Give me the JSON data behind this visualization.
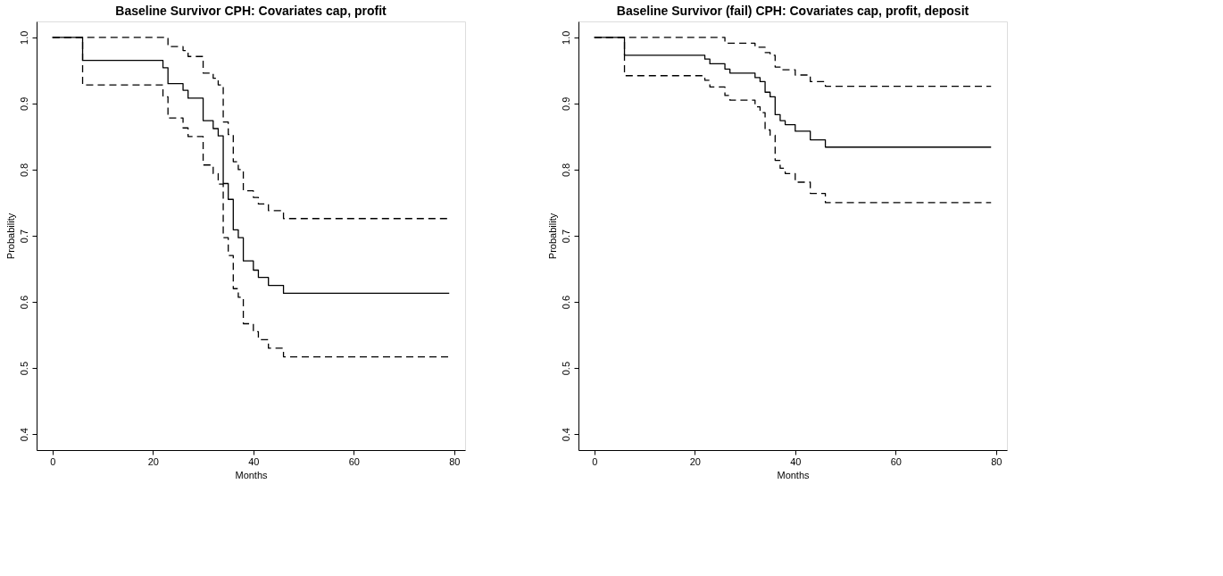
{
  "chart_data": [
    {
      "type": "step",
      "title": "Baseline Survivor CPH: Covariates cap, profit",
      "xlabel": "Months",
      "ylabel": "Probability",
      "xlim": [
        -3.16,
        82.16
      ],
      "ylim": [
        0.376,
        1.024
      ],
      "xticks": [
        0,
        20,
        40,
        60,
        80
      ],
      "yticks": [
        0.4,
        0.5,
        0.6,
        0.7,
        0.8,
        0.9,
        {
          "value": 1,
          "label": "1.0"
        }
      ],
      "grid": false,
      "legend": false,
      "series": [
        {
          "color": "#000000",
          "line_style": "dashed",
          "x": [
            0,
            6,
            22,
            23,
            26,
            27,
            30,
            32,
            33,
            34,
            35,
            36,
            37,
            38,
            40,
            41,
            43,
            46,
            79
          ],
          "values": [
            1.0,
            1.0,
            1.0,
            0.986,
            0.98,
            0.971,
            0.946,
            0.938,
            0.928,
            0.872,
            0.853,
            0.812,
            0.8,
            0.768,
            0.758,
            0.748,
            0.738,
            0.726,
            0.726
          ]
        },
        {
          "color": "#000000",
          "line_style": "solid",
          "x": [
            0,
            6,
            22,
            23,
            26,
            27,
            30,
            32,
            33,
            34,
            35,
            36,
            37,
            38,
            40,
            41,
            43,
            46,
            79
          ],
          "values": [
            1.0,
            0.965,
            0.954,
            0.93,
            0.92,
            0.908,
            0.874,
            0.862,
            0.851,
            0.779,
            0.755,
            0.709,
            0.697,
            0.662,
            0.648,
            0.637,
            0.625,
            0.613,
            0.613
          ]
        },
        {
          "color": "#000000",
          "line_style": "dashed",
          "x": [
            0,
            6,
            22,
            23,
            26,
            27,
            30,
            32,
            33,
            34,
            35,
            36,
            37,
            38,
            40,
            41,
            43,
            46,
            79
          ],
          "values": [
            1.0,
            0.928,
            0.91,
            0.878,
            0.863,
            0.85,
            0.807,
            0.794,
            0.778,
            0.697,
            0.67,
            0.62,
            0.607,
            0.567,
            0.555,
            0.543,
            0.53,
            0.517,
            0.517
          ]
        }
      ]
    },
    {
      "type": "step",
      "title": "Baseline Survivor (fail) CPH: Covariates cap, profit, deposit",
      "xlabel": "Months",
      "ylabel": "Probability",
      "xlim": [
        -3.16,
        82.16
      ],
      "ylim": [
        0.376,
        1.024
      ],
      "xticks": [
        0,
        20,
        40,
        60,
        80
      ],
      "yticks": [
        0.4,
        0.5,
        0.6,
        0.7,
        0.8,
        0.9,
        {
          "value": 1,
          "label": "1.0"
        }
      ],
      "grid": false,
      "legend": false,
      "series": [
        {
          "color": "#000000",
          "line_style": "dashed",
          "x": [
            0,
            26,
            32,
            34,
            35,
            36,
            37,
            40,
            43,
            46,
            79
          ],
          "values": [
            1.0,
            0.991,
            0.985,
            0.977,
            0.973,
            0.955,
            0.951,
            0.943,
            0.933,
            0.926,
            0.926
          ]
        },
        {
          "color": "#000000",
          "line_style": "solid",
          "x": [
            0,
            6,
            22,
            23,
            26,
            27,
            32,
            33,
            34,
            35,
            36,
            37,
            38,
            40,
            43,
            46,
            79
          ],
          "values": [
            1.0,
            0.973,
            0.967,
            0.96,
            0.952,
            0.946,
            0.939,
            0.933,
            0.917,
            0.91,
            0.883,
            0.874,
            0.868,
            0.858,
            0.845,
            0.834,
            0.834
          ]
        },
        {
          "color": "#000000",
          "line_style": "dashed",
          "x": [
            0,
            6,
            22,
            23,
            26,
            27,
            32,
            33,
            34,
            35,
            36,
            37,
            38,
            40,
            43,
            46,
            79
          ],
          "values": [
            1.0,
            0.942,
            0.935,
            0.925,
            0.912,
            0.905,
            0.895,
            0.886,
            0.86,
            0.852,
            0.814,
            0.802,
            0.794,
            0.781,
            0.764,
            0.75,
            0.75
          ]
        }
      ]
    }
  ]
}
